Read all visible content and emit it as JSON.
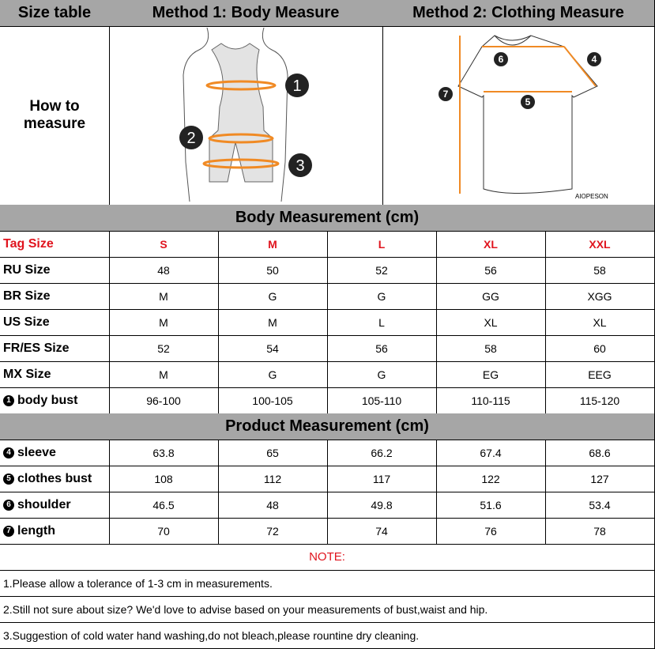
{
  "header": {
    "col1": "Size table",
    "col2": "Method 1: Body  Measure",
    "col3": "Method 2: Clothing Measure"
  },
  "how_to": "How to measure",
  "illustration": {
    "body_markers": [
      "1",
      "2",
      "3"
    ],
    "shirt_markers": [
      "4",
      "5",
      "6",
      "7"
    ],
    "shirt_brand": "AIOPESON",
    "accent": "#f08a24"
  },
  "body_section": "Body Measurement (cm)",
  "product_section": "Product Measurement (cm)",
  "sizes_label": "Tag Size",
  "sizes": [
    "S",
    "M",
    "L",
    "XL",
    "XXL"
  ],
  "body_rows": [
    {
      "label": "RU Size",
      "values": [
        "48",
        "50",
        "52",
        "56",
        "58"
      ]
    },
    {
      "label": "BR Size",
      "values": [
        "M",
        "G",
        "G",
        "GG",
        "XGG"
      ]
    },
    {
      "label": "US Size",
      "values": [
        "M",
        "M",
        "L",
        "XL",
        "XL"
      ]
    },
    {
      "label": "FR/ES Size",
      "values": [
        "52",
        "54",
        "56",
        "58",
        "60"
      ]
    },
    {
      "label": "MX Size",
      "values": [
        "M",
        "G",
        "G",
        "EG",
        "EEG"
      ]
    },
    {
      "marker": "1",
      "label": "body bust",
      "values": [
        "96-100",
        "100-105",
        "105-110",
        "110-115",
        "115-120"
      ]
    }
  ],
  "product_rows": [
    {
      "marker": "4",
      "label": "sleeve",
      "values": [
        "63.8",
        "65",
        "66.2",
        "67.4",
        "68.6"
      ]
    },
    {
      "marker": "5",
      "label": "clothes bust",
      "values": [
        "108",
        "112",
        "117",
        "122",
        "127"
      ]
    },
    {
      "marker": "6",
      "label": "shoulder",
      "values": [
        "46.5",
        "48",
        "49.8",
        "51.6",
        "53.4"
      ]
    },
    {
      "marker": "7",
      "label": "length",
      "values": [
        "70",
        "72",
        "74",
        "76",
        "78"
      ]
    }
  ],
  "note_title": "NOTE:",
  "notes": [
    "1.Please allow a tolerance of 1-3 cm in measurements.",
    "2.Still not sure about size? We'd love to advise based on your measurements of bust,waist and hip.",
    "3.Suggestion of cold water hand washing,do not bleach,please rountine dry cleaning."
  ]
}
